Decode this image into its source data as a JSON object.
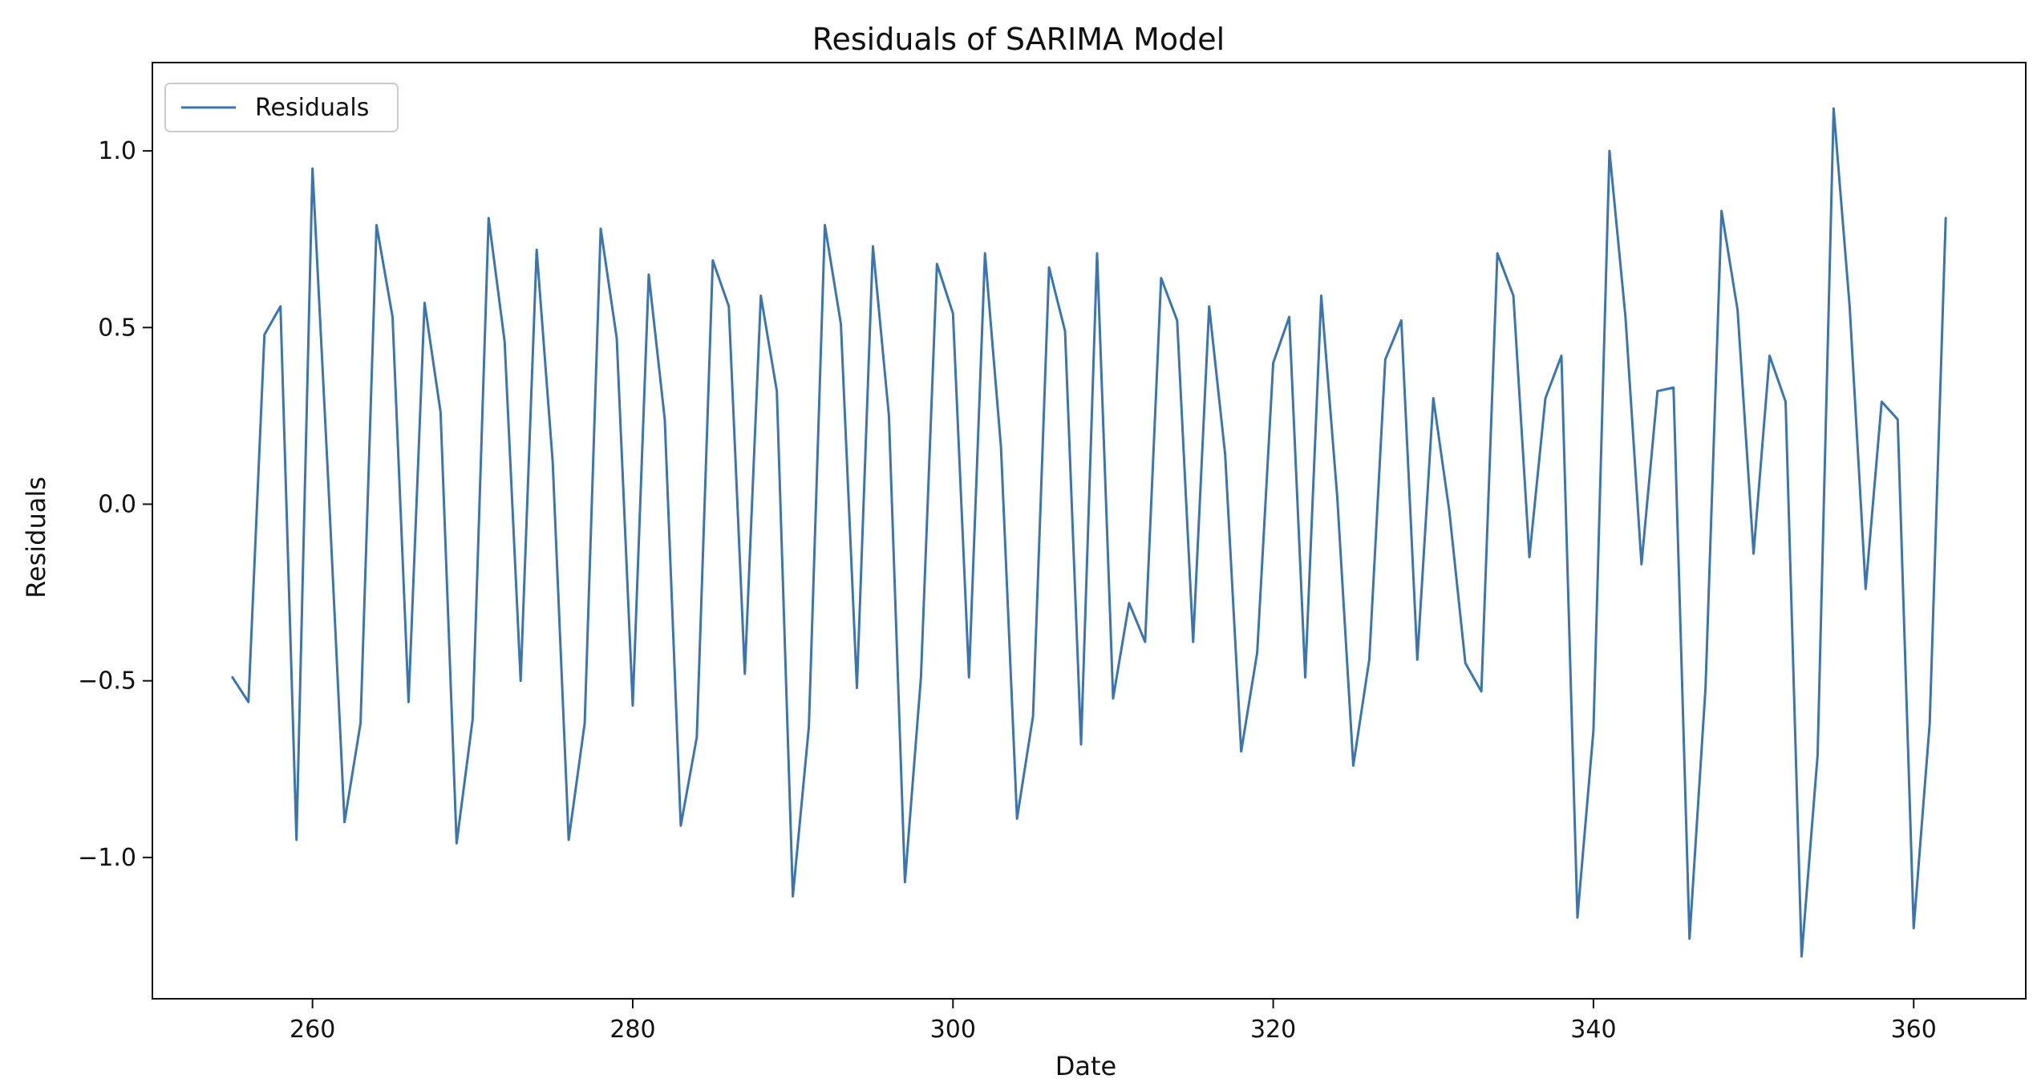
{
  "chart_data": {
    "type": "line",
    "title": "Residuals of SARIMA Model",
    "xlabel": "Date",
    "ylabel": "Residuals",
    "xlim": [
      250,
      367
    ],
    "ylim": [
      -1.4,
      1.25
    ],
    "grid": false,
    "legend_position": "top-left",
    "x_ticks": [
      260,
      280,
      300,
      320,
      340,
      360
    ],
    "y_ticks": [
      -1.0,
      -0.5,
      0.0,
      0.5,
      1.0
    ],
    "x_tick_labels": [
      "260",
      "280",
      "300",
      "320",
      "340",
      "360"
    ],
    "y_tick_labels": [
      "−1.0",
      "−0.5",
      "0.0",
      "0.5",
      "1.0"
    ],
    "series": [
      {
        "name": "Residuals",
        "color": "#3a75b0",
        "x": [
          255,
          256,
          257,
          258,
          259,
          260,
          261,
          262,
          263,
          264,
          265,
          266,
          267,
          268,
          269,
          270,
          271,
          272,
          273,
          274,
          275,
          276,
          277,
          278,
          279,
          280,
          281,
          282,
          283,
          284,
          285,
          286,
          287,
          288,
          289,
          290,
          291,
          292,
          293,
          294,
          295,
          296,
          297,
          298,
          299,
          300,
          301,
          302,
          303,
          304,
          305,
          306,
          307,
          308,
          309,
          310,
          311,
          312,
          313,
          314,
          315,
          316,
          317,
          318,
          319,
          320,
          321,
          322,
          323,
          324,
          325,
          326,
          327,
          328,
          329,
          330,
          331,
          332,
          333,
          334,
          335,
          336,
          337,
          338,
          339,
          340,
          341,
          342,
          343,
          344,
          345,
          346,
          347,
          348,
          349,
          350,
          351,
          352,
          353,
          354,
          355,
          356,
          357,
          358,
          359,
          360,
          361,
          362
        ],
        "y": [
          -0.49,
          -0.56,
          0.48,
          0.56,
          -0.95,
          0.95,
          0.05,
          -0.9,
          -0.62,
          0.79,
          0.53,
          -0.56,
          0.57,
          0.26,
          -0.96,
          -0.61,
          0.81,
          0.46,
          -0.5,
          0.72,
          0.12,
          -0.95,
          -0.62,
          0.78,
          0.47,
          -0.57,
          0.65,
          0.24,
          -0.91,
          -0.66,
          0.69,
          0.56,
          -0.48,
          0.59,
          0.32,
          -1.11,
          -0.63,
          0.79,
          0.51,
          -0.52,
          0.73,
          0.25,
          -1.07,
          -0.49,
          0.68,
          0.54,
          -0.49,
          0.71,
          0.16,
          -0.89,
          -0.6,
          0.67,
          0.49,
          -0.68,
          0.71,
          -0.55,
          -0.28,
          -0.39,
          0.64,
          0.52,
          -0.39,
          0.56,
          0.14,
          -0.7,
          -0.42,
          0.4,
          0.53,
          -0.49,
          0.59,
          0.02,
          -0.74,
          -0.44,
          0.41,
          0.52,
          -0.44,
          0.3,
          -0.02,
          -0.45,
          -0.53,
          0.71,
          0.59,
          -0.15,
          0.3,
          0.42,
          -1.17,
          -0.64,
          1.0,
          0.53,
          -0.17,
          0.32,
          0.33,
          -1.23,
          -0.52,
          0.83,
          0.55,
          -0.14,
          0.42,
          0.29,
          -1.28,
          -0.71,
          1.12,
          0.56,
          -0.24,
          0.29,
          0.24,
          -1.2,
          -0.62,
          0.81
        ]
      }
    ]
  }
}
